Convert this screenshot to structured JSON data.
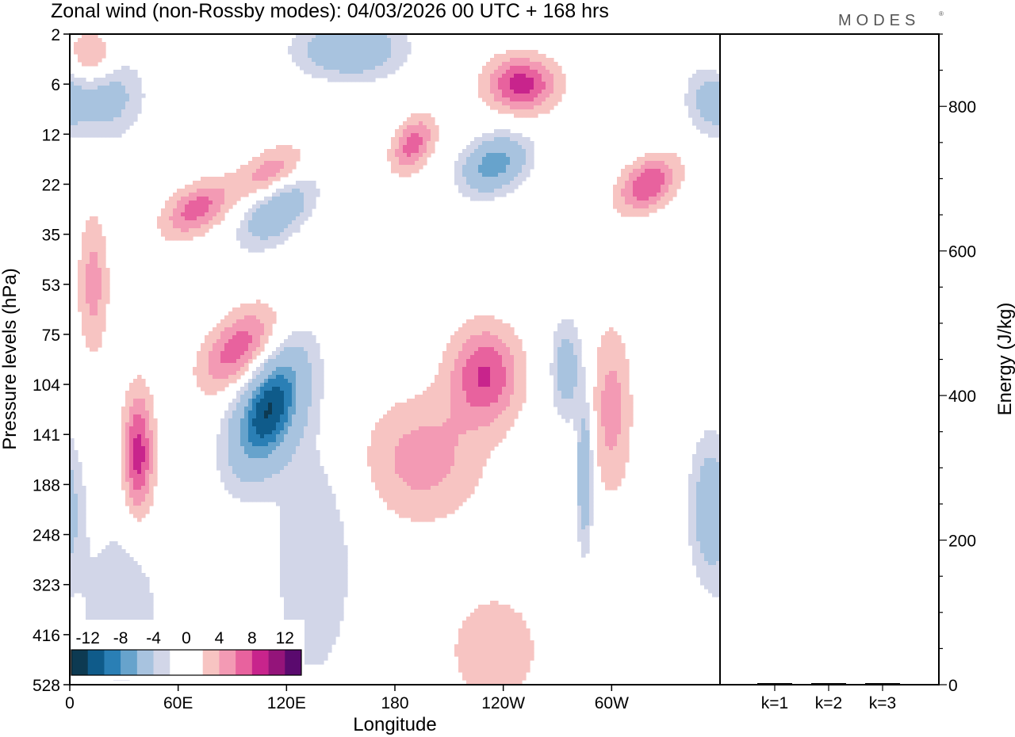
{
  "title": "Zonal wind (non-Rossby modes):  04/03/2026  00 UTC  + 168 hrs",
  "brand": "MODES",
  "colors": {
    "neg": [
      "#0d3a52",
      "#0f5b8a",
      "#2a7fb5",
      "#67a3cc",
      "#a8c3df",
      "#d2d6e8"
    ],
    "zero": "#ffffff",
    "pos": [
      "#f7c4c2",
      "#f39ab4",
      "#e8629e",
      "#c8248c",
      "#94147a",
      "#5a0a6e"
    ]
  },
  "chart_data": [
    {
      "type": "heatmap",
      "title": "Zonal wind (non-Rossby modes):  04/03/2026  00 UTC  + 168 hrs",
      "xlabel": "Longitude",
      "ylabel": "Pressure levels (hPa)",
      "x_ticks": [
        "0",
        "60E",
        "120E",
        "180",
        "120W",
        "60W"
      ],
      "x_tick_values": [
        0,
        60,
        120,
        180,
        240,
        300
      ],
      "xlim": [
        0,
        360
      ],
      "y_ticks": [
        "2",
        "6",
        "12",
        "22",
        "35",
        "53",
        "75",
        "104",
        "141",
        "188",
        "248",
        "323",
        "416",
        "528"
      ],
      "colorbar": {
        "labels": [
          "-12",
          "-8",
          "-4",
          "0",
          "4",
          "8",
          "12"
        ],
        "levels": [
          -14,
          -12,
          -10,
          -8,
          -6,
          -4,
          -2,
          2,
          4,
          6,
          8,
          10,
          12,
          14
        ]
      },
      "features": [
        {
          "lon": 110,
          "level": 7.5,
          "value": -14,
          "sx": 13,
          "sy": 0.9,
          "tilt": 0.5
        },
        {
          "lon": 38,
          "level": 8.4,
          "value": 9,
          "sx": 6,
          "sy": 0.9,
          "tilt": 0
        },
        {
          "lon": 13,
          "level": 5.0,
          "value": 5,
          "sx": 6,
          "sy": 1.0,
          "tilt": 0
        },
        {
          "lon": 95,
          "level": 6.3,
          "value": 8,
          "sx": 14,
          "sy": 0.6,
          "tilt": 0.5
        },
        {
          "lon": 230,
          "level": 6.8,
          "value": 8,
          "sx": 14,
          "sy": 0.7,
          "tilt": 0
        },
        {
          "lon": 195,
          "level": 8.5,
          "value": 5,
          "sx": 24,
          "sy": 0.9,
          "tilt": 0
        },
        {
          "lon": 300,
          "level": 7.5,
          "value": 5,
          "sx": 8,
          "sy": 1.2,
          "tilt": 0
        },
        {
          "lon": 285,
          "level": 8.8,
          "value": -8,
          "sx": 3,
          "sy": 1.0,
          "tilt": 0
        },
        {
          "lon": 275,
          "level": 6.7,
          "value": -6,
          "sx": 6,
          "sy": 0.7,
          "tilt": 0
        },
        {
          "lon": 250,
          "level": 1.0,
          "value": 9,
          "sx": 14,
          "sy": 0.4,
          "tilt": 0
        },
        {
          "lon": 235,
          "level": 2.6,
          "value": -10,
          "sx": 12,
          "sy": 0.4,
          "tilt": 0.3
        },
        {
          "lon": 155,
          "level": 0.3,
          "value": -8,
          "sx": 20,
          "sy": 0.4,
          "tilt": 0
        },
        {
          "lon": 115,
          "level": 3.5,
          "value": -8,
          "sx": 12,
          "sy": 0.5,
          "tilt": 0.6
        },
        {
          "lon": 70,
          "level": 3.5,
          "value": 7,
          "sx": 12,
          "sy": 0.4,
          "tilt": 0.5
        },
        {
          "lon": 112,
          "level": 2.8,
          "value": 6,
          "sx": 12,
          "sy": 0.4,
          "tilt": 0.5
        },
        {
          "lon": 320,
          "level": 3.0,
          "value": 8,
          "sx": 11,
          "sy": 0.4,
          "tilt": 0.4
        },
        {
          "lon": 20,
          "level": 1.2,
          "value": -6,
          "sx": 14,
          "sy": 0.6,
          "tilt": 0
        },
        {
          "lon": 355,
          "level": 1.3,
          "value": -5,
          "sx": 10,
          "sy": 0.5,
          "tilt": 0
        },
        {
          "lon": 355,
          "level": 9.5,
          "value": -7,
          "sx": 8,
          "sy": 1.0,
          "tilt": 0
        },
        {
          "lon": 235,
          "level": 12.3,
          "value": 4,
          "sx": 18,
          "sy": 0.8,
          "tilt": 0
        },
        {
          "lon": 135,
          "level": 10.5,
          "value": -4,
          "sx": 16,
          "sy": 1.8,
          "tilt": 0
        },
        {
          "lon": 28,
          "level": 11.5,
          "value": -4,
          "sx": 15,
          "sy": 1.2,
          "tilt": 0
        },
        {
          "lon": 12,
          "level": 0.5,
          "value": 6,
          "sx": 10,
          "sy": 0.4,
          "tilt": 0
        },
        {
          "lon": 190,
          "level": 2.2,
          "value": 7,
          "sx": 8,
          "sy": 0.4,
          "tilt": 0.4
        }
      ]
    },
    {
      "type": "bar",
      "categories": [
        "k=1",
        "k=2",
        "k=3"
      ],
      "values": [
        1,
        1,
        1
      ],
      "ylabel": "Energy (J/kg)",
      "ylim": [
        0,
        900
      ],
      "y_ticks": [
        "0",
        "200",
        "400",
        "600",
        "800"
      ],
      "y_tick_values": [
        0,
        200,
        400,
        600,
        800
      ]
    }
  ]
}
